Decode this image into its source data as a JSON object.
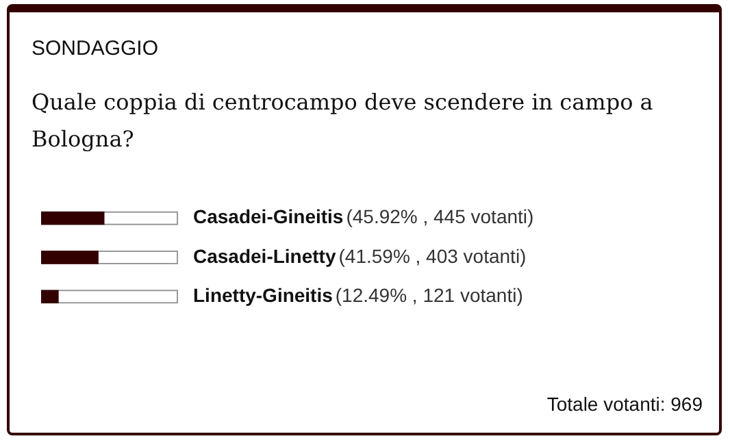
{
  "chart_data": {
    "type": "bar",
    "orientation": "horizontal",
    "title": "SONDAGGIO",
    "subtitle": "Quale coppia di centrocampo deve scendere in campo a Bologna?",
    "categories": [
      "Casadei-Gineitis",
      "Casadei-Linetty",
      "Linetty-Gineitis"
    ],
    "values": [
      45.92,
      41.59,
      12.49
    ],
    "color": "#330000",
    "value_labels": [
      "(45.92% , 445 votanti)",
      "(41.59% , 403 votanti)",
      "(12.49% , 121 votanti)"
    ],
    "xlim": [
      0,
      100
    ],
    "annotations": [
      "Totale votanti: 969"
    ]
  }
}
